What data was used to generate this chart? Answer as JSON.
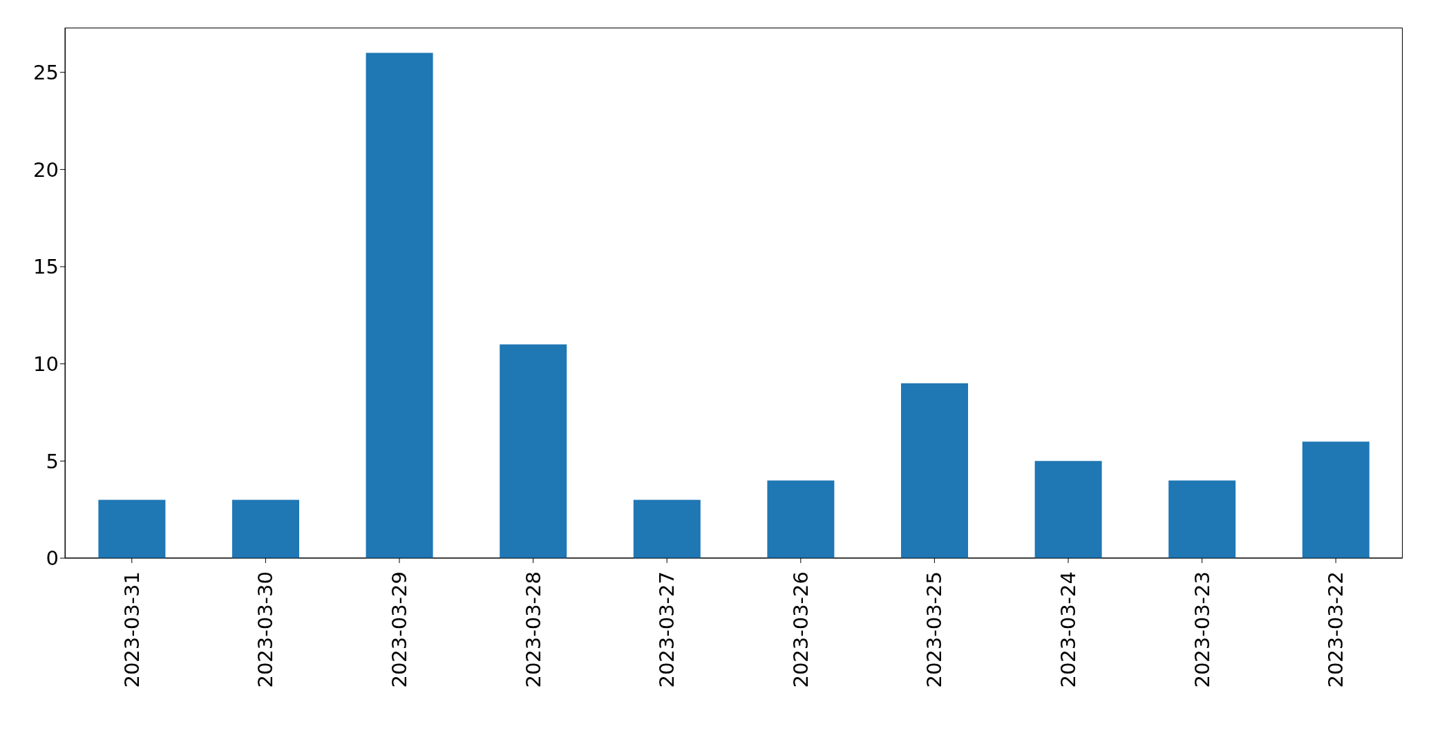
{
  "chart_data": {
    "type": "bar",
    "categories": [
      "2023-03-31",
      "2023-03-30",
      "2023-03-29",
      "2023-03-28",
      "2023-03-27",
      "2023-03-26",
      "2023-03-25",
      "2023-03-24",
      "2023-03-23",
      "2023-03-22"
    ],
    "values": [
      3,
      3,
      26,
      11,
      3,
      4,
      9,
      5,
      4,
      6
    ],
    "color": "#1f77b4",
    "ylim": [
      0,
      27.3
    ],
    "yticks": [
      0,
      5,
      10,
      15,
      20,
      25
    ],
    "grid": false
  }
}
